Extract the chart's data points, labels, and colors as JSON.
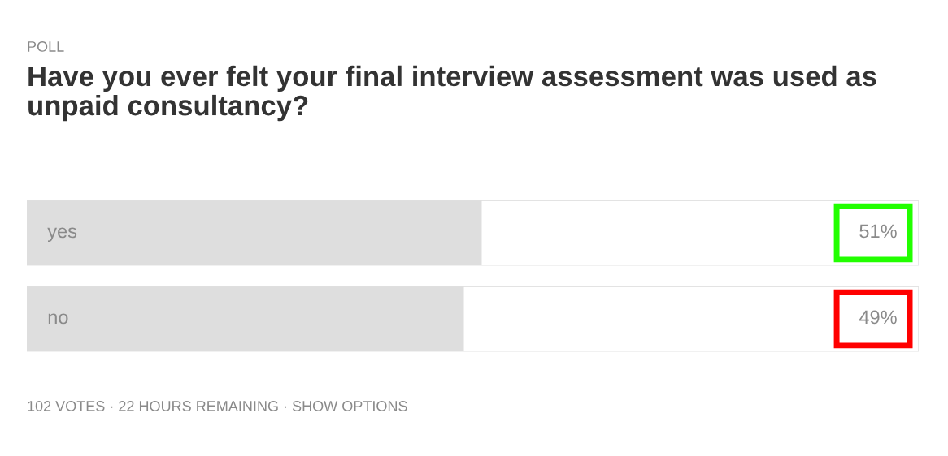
{
  "chart_data": {
    "type": "bar",
    "orientation": "horizontal",
    "title": "Have you ever felt your final interview assessment was used as unpaid consultancy?",
    "categories": [
      "yes",
      "no"
    ],
    "values": [
      51,
      49
    ],
    "value_labels": [
      "51%",
      "49%"
    ],
    "color": "#dedede",
    "xlim": [
      0,
      100
    ],
    "annotations": [
      "POLL",
      "102 VOTES · 22 HOURS REMAINING · SHOW OPTIONS"
    ]
  }
}
